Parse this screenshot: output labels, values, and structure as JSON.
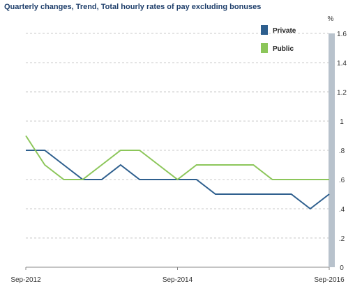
{
  "chart_data": {
    "type": "line",
    "title": "Quarterly changes, Trend, Total hourly rates of pay excluding bonuses",
    "xlabel": "",
    "ylabel": "",
    "y_unit": "%",
    "ylim": [
      0,
      1.6
    ],
    "y_ticks": [
      "0",
      ".2",
      ".4",
      ".6",
      ".8",
      "1",
      "1.2",
      "1.4",
      "1.6"
    ],
    "x_ticks": [
      "Sep-2012",
      "Sep-2014",
      "Sep-2016"
    ],
    "x": [
      "Sep-2012",
      "Dec-2012",
      "Mar-2013",
      "Jun-2013",
      "Sep-2013",
      "Dec-2013",
      "Mar-2014",
      "Jun-2014",
      "Sep-2014",
      "Dec-2014",
      "Mar-2015",
      "Jun-2015",
      "Sep-2015",
      "Dec-2015",
      "Mar-2016",
      "Jun-2016",
      "Sep-2016"
    ],
    "series": [
      {
        "name": "Private",
        "color": "#2e5f8e",
        "values": [
          0.8,
          0.8,
          0.7,
          0.6,
          0.6,
          0.7,
          0.6,
          0.6,
          0.6,
          0.6,
          0.5,
          0.5,
          0.5,
          0.5,
          0.5,
          0.4,
          0.5
        ]
      },
      {
        "name": "Public",
        "color": "#8cc65a",
        "values": [
          0.9,
          0.7,
          0.6,
          0.6,
          0.7,
          0.8,
          0.8,
          0.7,
          0.6,
          0.7,
          0.7,
          0.7,
          0.7,
          0.6,
          0.6,
          0.6,
          0.6
        ]
      }
    ],
    "legend_position": "top-right",
    "grid": "horizontal-dashed",
    "axis_bar_color": "#b8c2cc"
  }
}
